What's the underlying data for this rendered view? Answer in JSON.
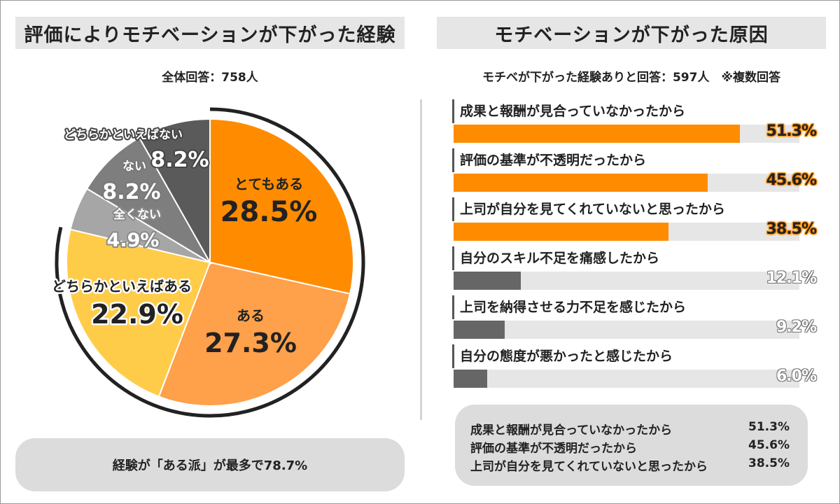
{
  "left": {
    "title": "評価によりモチベーションが下がった経験",
    "subtitle": "全体回答：758人",
    "summary": "経験が「ある派」が最多で78.7%"
  },
  "right": {
    "title": "モチベーションが下がった原因",
    "subtitle": "モチベが下がった経験ありと回答：597人　※複数回答",
    "summary": [
      {
        "label": "成果と報酬が見合っていなかったから",
        "value": "51.3%"
      },
      {
        "label": "評価の基準が不透明だったから",
        "value": "45.6%"
      },
      {
        "label": "上司が自分を見てくれていないと思ったから",
        "value": "38.5%"
      }
    ]
  },
  "colors": {
    "orange": "#ff8c00",
    "light_orange": "#ffa04a",
    "yellow": "#ffcc4a",
    "gray_light": "#a6a6a6",
    "gray_mid": "#7e7e7e",
    "gray_dark": "#5a5a5a",
    "bar_gray": "#666666",
    "track": "#e6e6e6"
  },
  "chart_data": [
    {
      "type": "pie",
      "title": "評価によりモチベーションが下がった経験",
      "slices": [
        {
          "label": "とてもある",
          "value": 28.5,
          "display": "28.5%",
          "color": "#ff8c00"
        },
        {
          "label": "ある",
          "value": 27.3,
          "display": "27.3%",
          "color": "#ffa04a"
        },
        {
          "label": "どちらかといえばある",
          "value": 22.9,
          "display": "22.9%",
          "color": "#ffcc4a"
        },
        {
          "label": "全くない",
          "value": 4.9,
          "display": "4.9%",
          "color": "#a6a6a6"
        },
        {
          "label": "ない",
          "value": 8.2,
          "display": "8.2%",
          "color": "#7e7e7e"
        },
        {
          "label": "どちらかといえばない",
          "value": 8.2,
          "display": "8.2%",
          "color": "#5a5a5a"
        }
      ]
    },
    {
      "type": "bar",
      "title": "モチベーションが下がった原因",
      "orientation": "horizontal",
      "categories": [
        "成果と報酬が見合っていなかったから",
        "評価の基準が不透明だったから",
        "上司が自分を見てくれていないと思ったから",
        "自分のスキル不足を痛感したから",
        "上司を納得させる力不足を感じたから",
        "自分の態度が悪かったと感じたから"
      ],
      "values": [
        51.3,
        45.6,
        38.5,
        12.1,
        9.2,
        6.0
      ],
      "display": [
        "51.3%",
        "45.6%",
        "38.5%",
        "12.1%",
        "9.2%",
        "6.0%"
      ],
      "colors": [
        "#ff8c00",
        "#ff8c00",
        "#ff8c00",
        "#666666",
        "#666666",
        "#666666"
      ],
      "xlim": [
        0,
        62
      ]
    }
  ]
}
